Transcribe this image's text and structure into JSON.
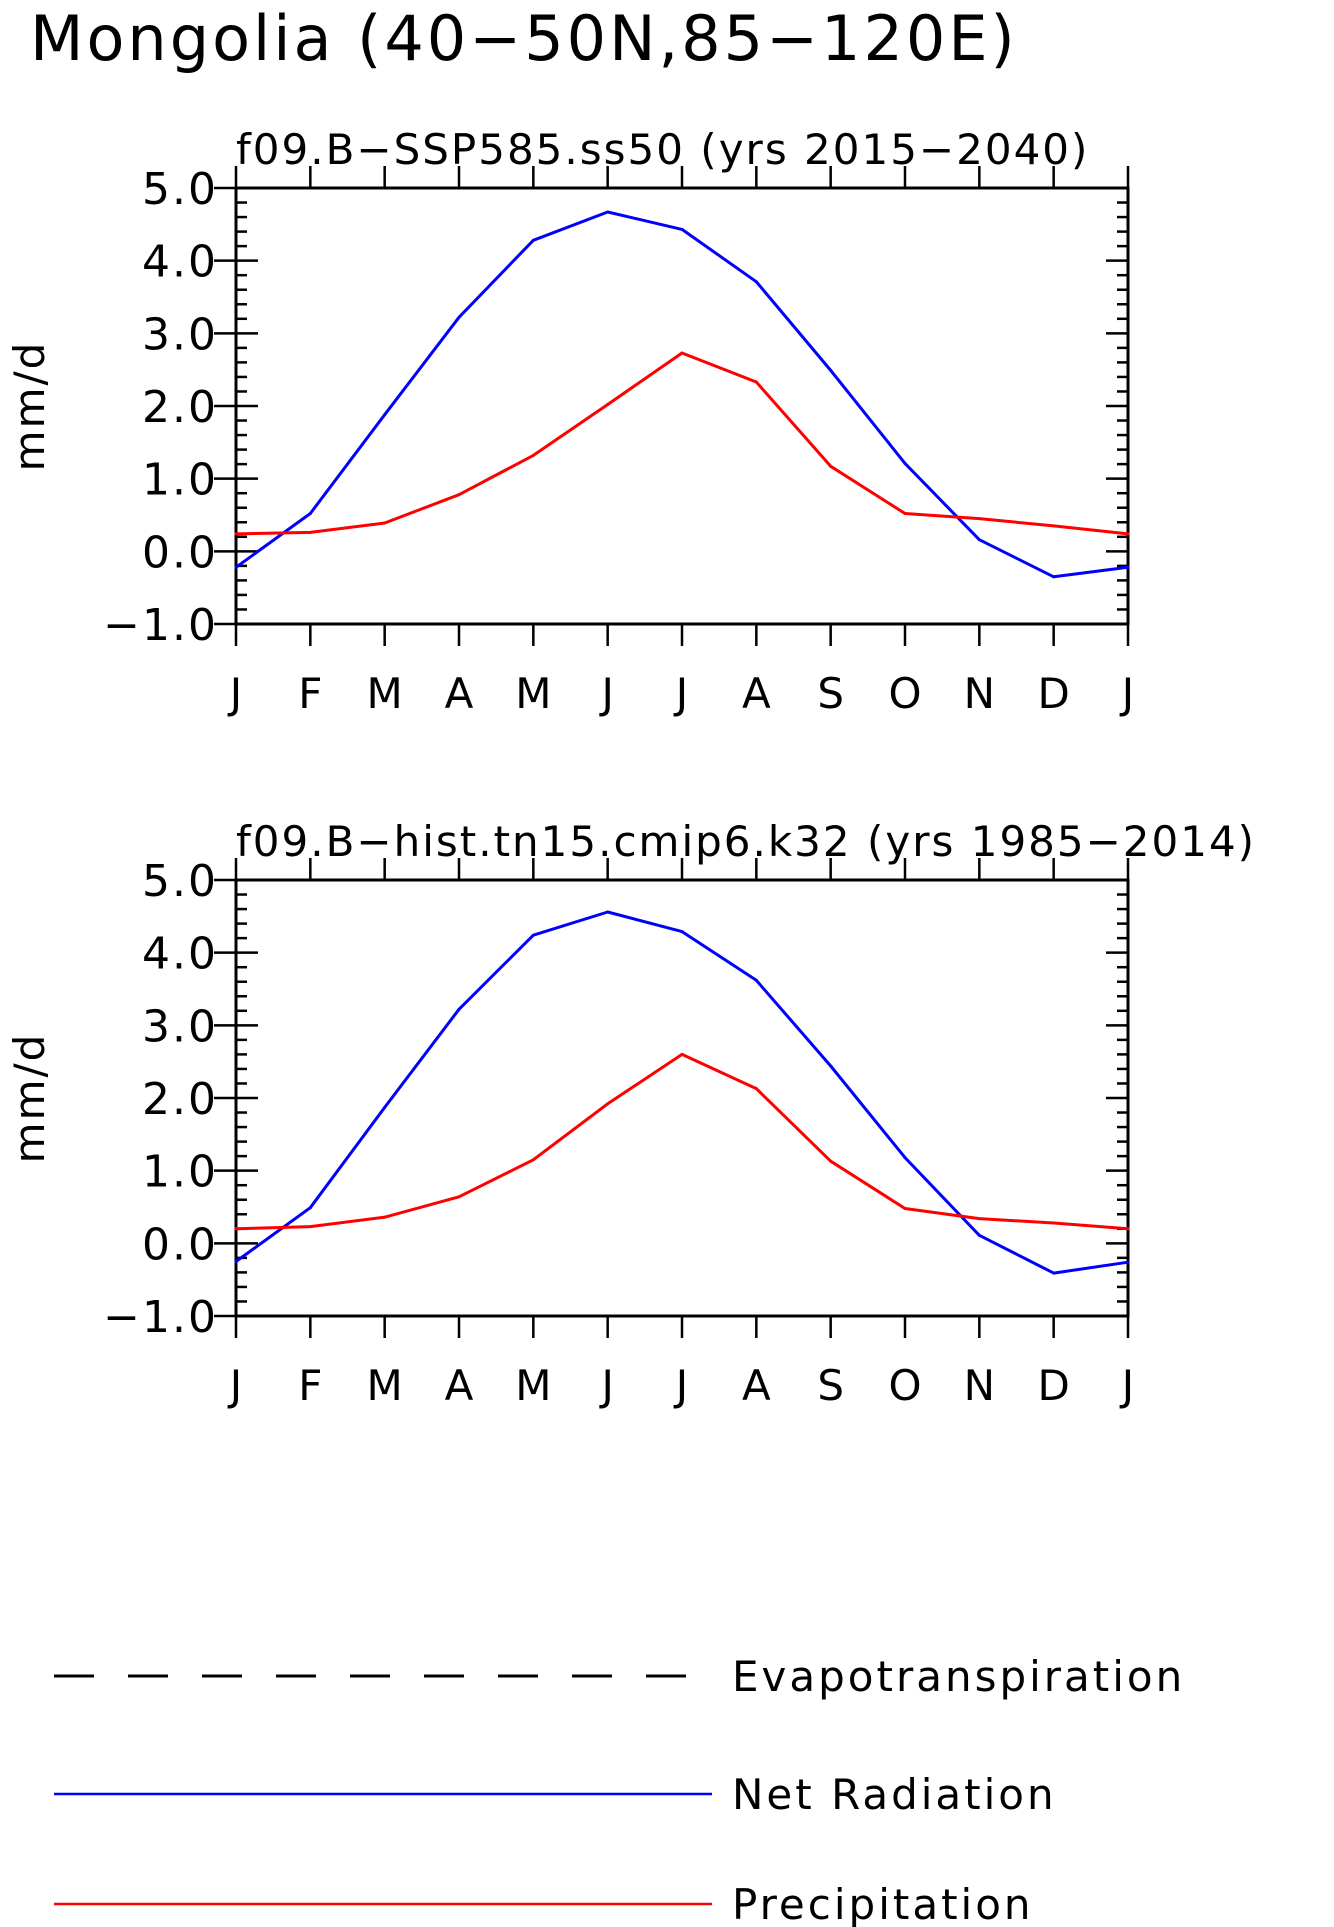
{
  "figure": {
    "title": "Mongolia (40−50N,85−120E)"
  },
  "colors": {
    "net_radiation": "#0000ff",
    "precipitation": "#ff0000",
    "evapotranspiration": "#000000",
    "axes": "#000000"
  },
  "chart_data": [
    {
      "type": "line",
      "title": "f09.B−SSP585.ss50 (yrs 2015−2040)",
      "xlabel": "",
      "ylabel": "mm/d",
      "categories": [
        "J",
        "F",
        "M",
        "A",
        "M",
        "J",
        "J",
        "A",
        "S",
        "O",
        "N",
        "D",
        "J"
      ],
      "ylim": [
        -1.0,
        5.0
      ],
      "yticks": [
        "5.0",
        "4.0",
        "3.0",
        "2.0",
        "1.0",
        "0.0",
        "−1.0"
      ],
      "grid": false,
      "series": [
        {
          "name": "Net Radiation",
          "color": "#0000ff",
          "values": [
            -0.22,
            0.52,
            1.88,
            3.22,
            4.28,
            4.67,
            4.43,
            3.71,
            2.49,
            1.21,
            0.16,
            -0.35,
            -0.22
          ]
        },
        {
          "name": "Precipitation",
          "color": "#ff0000",
          "values": [
            0.24,
            0.26,
            0.39,
            0.78,
            1.32,
            2.02,
            2.73,
            2.33,
            1.17,
            0.52,
            0.45,
            0.35,
            0.24
          ]
        }
      ]
    },
    {
      "type": "line",
      "title": "f09.B−hist.tn15.cmip6.k32 (yrs 1985−2014)",
      "xlabel": "",
      "ylabel": "mm/d",
      "categories": [
        "J",
        "F",
        "M",
        "A",
        "M",
        "J",
        "J",
        "A",
        "S",
        "O",
        "N",
        "D",
        "J"
      ],
      "ylim": [
        -1.0,
        5.0
      ],
      "yticks": [
        "5.0",
        "4.0",
        "3.0",
        "2.0",
        "1.0",
        "0.0",
        "−1.0"
      ],
      "grid": false,
      "series": [
        {
          "name": "Net Radiation",
          "color": "#0000ff",
          "values": [
            -0.25,
            0.49,
            1.87,
            3.22,
            4.24,
            4.56,
            4.29,
            3.62,
            2.44,
            1.18,
            0.11,
            -0.41,
            -0.26
          ]
        },
        {
          "name": "Precipitation",
          "color": "#ff0000",
          "values": [
            0.2,
            0.23,
            0.36,
            0.64,
            1.15,
            1.92,
            2.6,
            2.13,
            1.13,
            0.48,
            0.34,
            0.28,
            0.2
          ]
        }
      ]
    }
  ],
  "legend": {
    "placement": "bottom",
    "items": [
      {
        "label": "Evapotranspiration",
        "color": "#000000",
        "style": "dashed"
      },
      {
        "label": "Net Radiation",
        "color": "#0000ff",
        "style": "solid"
      },
      {
        "label": "Precipitation",
        "color": "#ff0000",
        "style": "solid"
      }
    ]
  }
}
